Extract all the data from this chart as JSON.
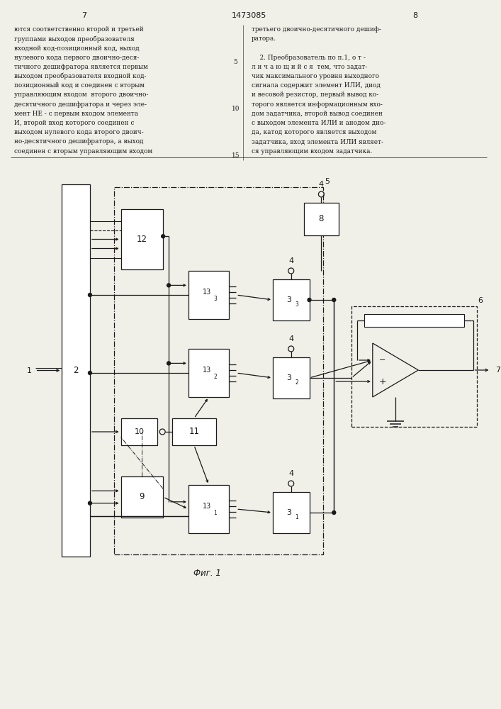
{
  "page_number_left": "7",
  "page_number_center": "1473085",
  "page_number_right": "8",
  "text_left_lines": [
    "ются соответственно второй и третьей",
    "группами выходов преобразователя",
    "входной код-позиционный код, выход",
    "нулевого кода первого двоично-деся-",
    "тичного дешифратора является первым",
    "выходом преобразователя входной код-",
    "позиционный код и соединен с вторым",
    "управляющим входом  второго двоично-",
    "десятичного дешифратора и через эле-",
    "мент НЕ - с первым входом элемента",
    "И, второй вход которого соединен с",
    "выходом нулевого кода второго двоич-",
    "но-десятичного дешифратора, а выход",
    "соединен с вторым управляющим входом"
  ],
  "line_numbers": [
    "5",
    "10",
    "15"
  ],
  "line_number_rows": [
    4,
    9,
    14
  ],
  "text_right_lines": [
    "третьего двоично-десятичного дешиф-",
    "ратора.",
    "",
    "    2. Преобразователь по п.1, о т -",
    "л и ч а ю щ и й с я  тем, что задат-",
    "чик максимального уровня выходного",
    "сигнала содержит элемент ИЛИ, диод",
    "и весовой резистор, первый вывод ко-",
    "торого является информационным вхо-",
    "дом задатчика, второй вывод соединен",
    "с выходом элемента ИЛИ и анодом дио-",
    "да, катод которого является выходом",
    "задатчика, вход элемента ИЛИ являет-",
    "ся управляющим входом задатчика."
  ],
  "fig_label": "Фиг. 1",
  "bg_color": "#f0efe8"
}
